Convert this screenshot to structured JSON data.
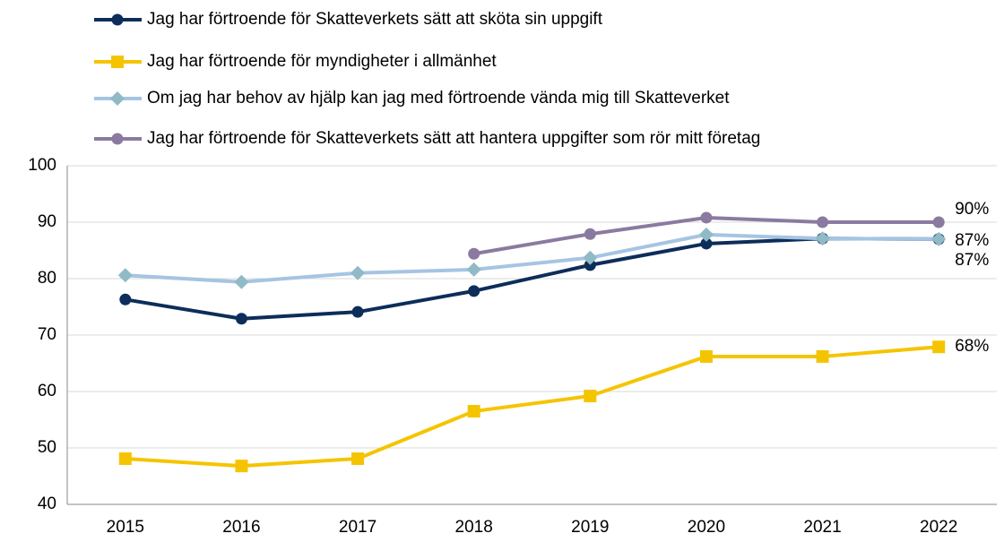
{
  "chart_data": {
    "type": "line",
    "categories": [
      "2015",
      "2016",
      "2017",
      "2018",
      "2019",
      "2020",
      "2021",
      "2022"
    ],
    "series": [
      {
        "name": "Jag har förtroende för Skatteverkets sätt att sköta sin uppgift",
        "color": "#0d2d5a",
        "marker": "circle",
        "values": [
          76.3,
          72.9,
          74.1,
          77.8,
          82.4,
          86.2,
          87.1,
          87
        ],
        "value_labels": [
          null,
          null,
          null,
          null,
          null,
          null,
          null,
          "87%"
        ]
      },
      {
        "name": "Jag har förtroende för myndigheter i allmänhet",
        "color": "#f5c400",
        "marker": "square",
        "values": [
          48.1,
          46.8,
          48.1,
          56.5,
          59.2,
          66.2,
          66.2,
          67.9
        ],
        "value_labels": [
          null,
          null,
          null,
          null,
          null,
          null,
          null,
          "68%"
        ]
      },
      {
        "name": "Om jag har behov av hjälp kan jag med förtroende vända mig till Skatteverket",
        "color": "#a6c4e3",
        "marker_color": "#8fbac6",
        "marker": "diamond",
        "values": [
          80.6,
          79.4,
          81,
          81.6,
          83.7,
          87.8,
          87.1,
          87
        ],
        "value_labels": [
          null,
          null,
          null,
          null,
          null,
          null,
          null,
          "87%"
        ]
      },
      {
        "name": "Jag har förtroende för Skatteverkets sätt att hantera uppgifter som rör mitt företag",
        "color": "#8b7aa0",
        "marker": "circle",
        "values": [
          null,
          null,
          null,
          84.4,
          87.9,
          90.8,
          90,
          90
        ],
        "value_labels": [
          null,
          null,
          null,
          null,
          null,
          null,
          null,
          "90%"
        ]
      }
    ],
    "ylim": [
      40,
      100
    ],
    "yticks": [
      40,
      50,
      60,
      70,
      80,
      90,
      100
    ],
    "grid": true
  }
}
